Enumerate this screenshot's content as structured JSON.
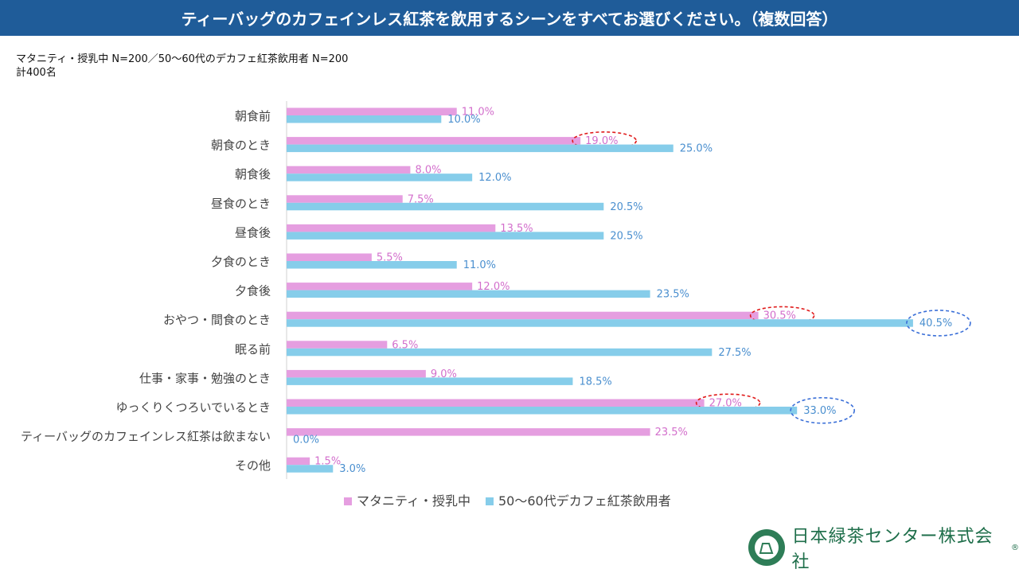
{
  "header": {
    "title": "ティーバッグのカフェインレス紅茶を飲用するシーンをすべてお選びください。（複数回答）"
  },
  "subtitle": {
    "line1": "マタニティ・授乳中 N=200／50～60代のデカフェ紅茶飲用者 N=200",
    "line2": "計400名"
  },
  "logo": {
    "text": "日本緑茶センター株式会社",
    "emblem": "THE FINEST TEAS",
    "reg": "®"
  },
  "chart_data": {
    "type": "bar",
    "orientation": "horizontal",
    "categories": [
      "朝食前",
      "朝食のとき",
      "朝食後",
      "昼食のとき",
      "昼食後",
      "夕食のとき",
      "夕食後",
      "おやつ・間食のとき",
      "眠る前",
      "仕事・家事・勉強のとき",
      "ゆっくりくつろいでいるとき",
      "ティーバッグのカフェインレス紅茶は飲まない",
      "その他"
    ],
    "series": [
      {
        "name": "マタニティ・授乳中",
        "color": "#e59ee0",
        "label_color": "#d36fcc",
        "values": [
          11.0,
          19.0,
          8.0,
          7.5,
          13.5,
          5.5,
          12.0,
          30.5,
          6.5,
          9.0,
          27.0,
          23.5,
          1.5
        ],
        "highlight": [
          1,
          7,
          10
        ],
        "highlight_color": "#e01b1b"
      },
      {
        "name": "50～60代デカフェ紅茶飲用者",
        "color": "#86cdea",
        "label_color": "#4a8fcf",
        "values": [
          10.0,
          25.0,
          12.0,
          20.5,
          20.5,
          11.0,
          23.5,
          40.5,
          27.5,
          18.5,
          33.0,
          0.0,
          3.0
        ],
        "highlight": [
          7,
          10
        ],
        "highlight_color": "#3a6fd8"
      }
    ],
    "value_suffix": "%",
    "legend": "bottom",
    "xlim": [
      0,
      41
    ]
  }
}
